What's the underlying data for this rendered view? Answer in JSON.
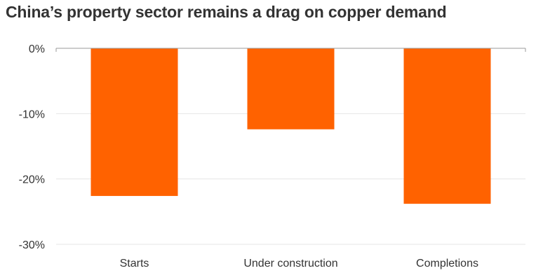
{
  "chart_data": {
    "type": "bar",
    "title": "China’s property sector remains a drag on copper demand",
    "categories": [
      "Starts",
      "Under construction",
      "Completions"
    ],
    "values": [
      -22.6,
      -12.4,
      -23.8
    ],
    "unit": "%",
    "ylim": [
      -30,
      0
    ],
    "yticks": [
      0,
      -10,
      -20,
      -30
    ],
    "ytick_labels": [
      "0%",
      "-10%",
      "-20%",
      "-30%"
    ],
    "grid": true,
    "colors": {
      "bar": "#ff6200",
      "grid": "#e6e6e6",
      "axis": "#999999",
      "text": "#333333"
    }
  }
}
